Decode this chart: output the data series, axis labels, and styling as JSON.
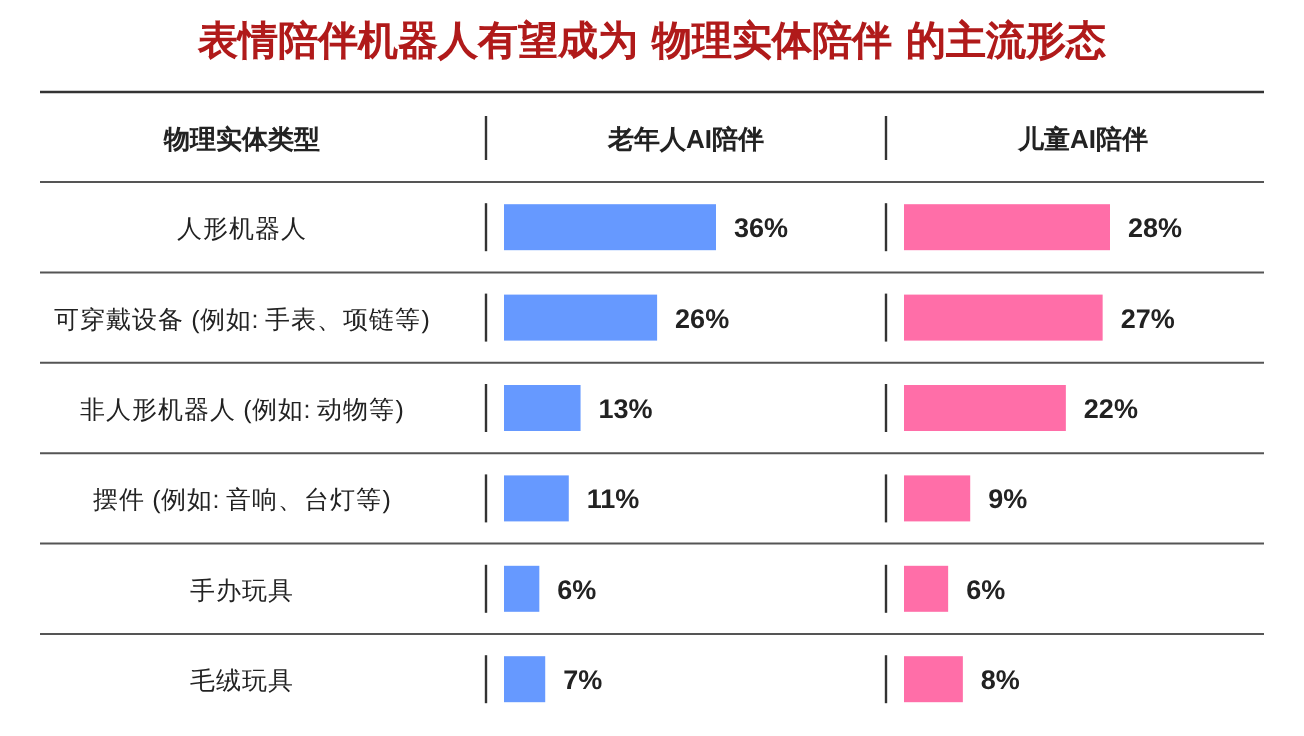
{
  "chart_data": [
    {
      "type": "bar",
      "orientation": "horizontal",
      "title": "表情陪伴机器人有望成为 物理实体陪伴 的主流形态",
      "ylabel": "物理实体类型",
      "subtitle": "老年人AI陪伴",
      "categories": [
        "人形机器人",
        "可穿戴设备 (例如: 手表、项链等)",
        "非人形机器人 (例如: 动物等)",
        "摆件 (例如: 音响、台灯等)",
        "手办玩具",
        "毛绒玩具"
      ],
      "color": "#6699ff",
      "values": [
        36,
        26,
        13,
        11,
        6,
        7
      ],
      "value_labels": [
        "36%",
        "26%",
        "13%",
        "11%",
        "6%",
        "7%"
      ]
    },
    {
      "type": "bar",
      "orientation": "horizontal",
      "subtitle": "儿童AI陪伴",
      "categories": [
        null,
        null,
        null,
        null,
        null,
        null
      ],
      "color": "#ff6ea8",
      "values": [
        28,
        27,
        22,
        9,
        6,
        8
      ],
      "value_labels": [
        "28%",
        "27%",
        "22%",
        "9%",
        "6%",
        "8%"
      ]
    }
  ]
}
